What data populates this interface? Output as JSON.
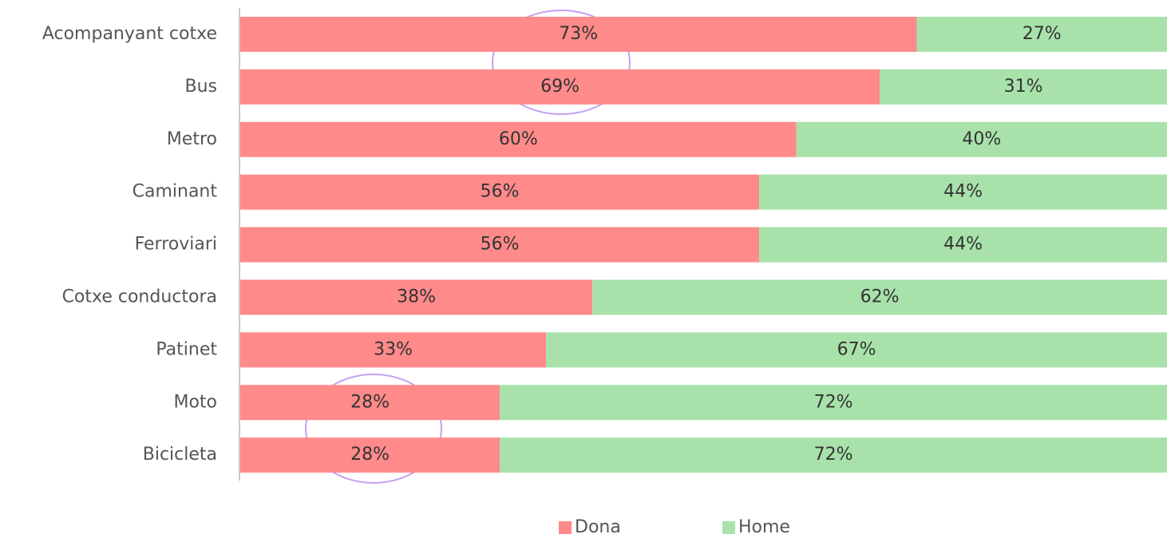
{
  "chart_data": {
    "type": "bar",
    "orientation": "horizontal",
    "stacked": true,
    "categories": [
      "Acompanyant cotxe",
      "Bus",
      "Metro",
      "Caminant",
      "Ferroviari",
      "Cotxe conductora",
      "Patinet",
      "Moto",
      "Bicicleta"
    ],
    "series": [
      {
        "name": "Dona",
        "color": "#ff8a8a",
        "values": [
          73,
          69,
          60,
          56,
          56,
          38,
          33,
          28,
          28
        ],
        "value_labels": [
          "73%",
          "69%",
          "60%",
          "56%",
          "56%",
          "38%",
          "33%",
          "28%",
          "28%"
        ]
      },
      {
        "name": "Home",
        "color": "#a8e2aa",
        "values": [
          27,
          31,
          40,
          44,
          44,
          62,
          67,
          72,
          72
        ],
        "value_labels": [
          "27%",
          "31%",
          "40%",
          "44%",
          "44%",
          "62%",
          "67%",
          "72%",
          "72%"
        ]
      }
    ],
    "xlim": [
      0,
      100
    ],
    "legend": "bottom"
  }
}
